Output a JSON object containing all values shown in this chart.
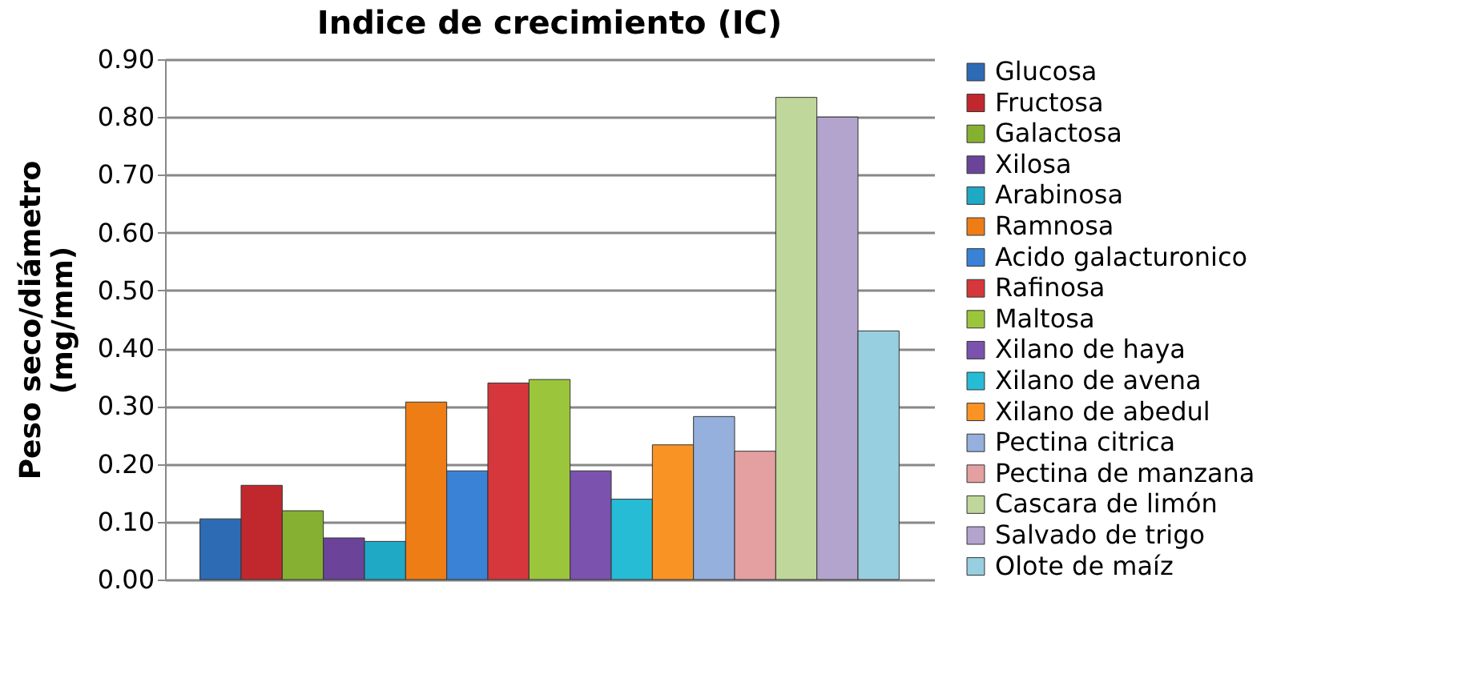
{
  "chart_data": {
    "type": "bar",
    "title": "Indice de crecimiento (IC)",
    "ylabel": "Peso seco/diámetro\n(mg/mm)",
    "categories": [
      null
    ],
    "series": [
      {
        "name": "Glucosa",
        "color": "#2e6bb5",
        "values": [
          0.105
        ]
      },
      {
        "name": "Fructosa",
        "color": "#c0282d",
        "values": [
          0.163
        ]
      },
      {
        "name": "Galactosa",
        "color": "#86b032",
        "values": [
          0.119
        ]
      },
      {
        "name": "Xilosa",
        "color": "#6b449a",
        "values": [
          0.072
        ]
      },
      {
        "name": "Arabinosa",
        "color": "#1fa9c4",
        "values": [
          0.066
        ]
      },
      {
        "name": "Ramnosa",
        "color": "#ee7d16",
        "values": [
          0.307
        ]
      },
      {
        "name": "Acido galacturonico",
        "color": "#3a82d6",
        "values": [
          0.188
        ]
      },
      {
        "name": "Rafinosa",
        "color": "#d6373c",
        "values": [
          0.34
        ]
      },
      {
        "name": "Maltosa",
        "color": "#9bc63c",
        "values": [
          0.346
        ]
      },
      {
        "name": "Xilano de haya",
        "color": "#7b52ae",
        "values": [
          0.188
        ]
      },
      {
        "name": "Xilano de avena",
        "color": "#26bcd6",
        "values": [
          0.139
        ]
      },
      {
        "name": "Xilano de abedul",
        "color": "#f99424",
        "values": [
          0.233
        ]
      },
      {
        "name": "Pectina citrica",
        "color": "#95b0dc",
        "values": [
          0.282
        ]
      },
      {
        "name": "Pectina de manzana",
        "color": "#e4a0a0",
        "values": [
          0.222
        ]
      },
      {
        "name": "Cascara de limón",
        "color": "#bfd79a",
        "values": [
          0.834
        ]
      },
      {
        "name": "Salvado de trigo",
        "color": "#b2a4cc",
        "values": [
          0.8
        ]
      },
      {
        "name": "Olote de maíz",
        "color": "#98cfe0",
        "values": [
          0.43
        ]
      }
    ],
    "ylim": [
      0,
      0.9
    ],
    "yticks": [
      {
        "value": 0,
        "label": "0.00"
      },
      {
        "value": 0.1,
        "label": "0.10"
      },
      {
        "value": 0.2,
        "label": "0.20"
      },
      {
        "value": 0.3,
        "label": "0.30"
      },
      {
        "value": 0.4,
        "label": "0.40"
      },
      {
        "value": 0.5,
        "label": "0.50"
      },
      {
        "value": 0.6,
        "label": "0.60"
      },
      {
        "value": 0.7,
        "label": "0.70"
      },
      {
        "value": 0.8,
        "label": "0.80"
      },
      {
        "value": 0.9,
        "label": "0.90"
      }
    ],
    "grid": "y",
    "legend": "right"
  }
}
